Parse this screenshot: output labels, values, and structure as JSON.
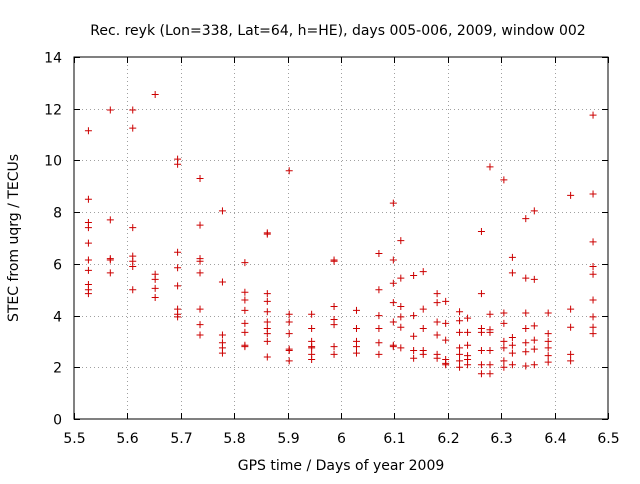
{
  "colors": {
    "point": "#cc0000",
    "axis": "#000000",
    "grid": "#a0a0a0"
  },
  "chart_data": {
    "type": "scatter",
    "title": "Rec. reyk (Lon=338, Lat=64, h=HE), days 005-006, 2009, window 002",
    "xlabel": "GPS time / Days of year 2009",
    "ylabel": "STEC from uqrg / TECUs",
    "xlim": [
      5.5,
      6.5
    ],
    "ylim": [
      0,
      14
    ],
    "grid": true,
    "marker": "plus",
    "xticks": [
      5.5,
      5.6,
      5.7,
      5.8,
      5.9,
      6.0,
      6.1,
      6.2,
      6.3,
      6.4,
      6.5
    ],
    "xtick_labels": [
      "5.5",
      "5.6",
      "5.7",
      "5.8",
      "5.9",
      "6",
      "6.1",
      "6.2",
      "6.3",
      "6.4",
      "6.5"
    ],
    "yticks": [
      0,
      2,
      4,
      6,
      8,
      10,
      12,
      14
    ],
    "ytick_labels": [
      "0",
      "2",
      "4",
      "6",
      "8",
      "10",
      "12",
      "14"
    ],
    "series": [
      {
        "name": "STEC",
        "x": [
          5.527,
          5.527,
          5.527,
          5.527,
          5.527,
          5.527,
          5.527,
          5.527,
          5.527,
          5.527,
          5.568,
          5.568,
          5.568,
          5.568,
          5.568,
          5.61,
          5.61,
          5.61,
          5.61,
          5.61,
          5.61,
          5.61,
          5.652,
          5.652,
          5.652,
          5.652,
          5.652,
          5.694,
          5.694,
          5.694,
          5.694,
          5.694,
          5.694,
          5.694,
          5.694,
          5.736,
          5.736,
          5.736,
          5.736,
          5.736,
          5.736,
          5.736,
          5.736,
          5.778,
          5.778,
          5.778,
          5.778,
          5.778,
          5.778,
          5.82,
          5.82,
          5.82,
          5.82,
          5.82,
          5.82,
          5.82,
          5.82,
          5.862,
          5.862,
          5.862,
          5.862,
          5.862,
          5.862,
          5.862,
          5.862,
          5.862,
          5.862,
          5.903,
          5.903,
          5.903,
          5.903,
          5.903,
          5.903,
          5.903,
          5.945,
          5.945,
          5.945,
          5.945,
          5.945,
          5.945,
          5.945,
          5.987,
          5.987,
          5.987,
          5.987,
          5.987,
          5.987,
          5.987,
          6.029,
          6.029,
          6.029,
          6.029,
          6.029,
          6.071,
          6.071,
          6.071,
          6.071,
          6.071,
          6.071,
          6.098,
          6.098,
          6.098,
          6.098,
          6.098,
          6.098,
          6.098,
          6.112,
          6.112,
          6.112,
          6.112,
          6.112,
          6.112,
          6.136,
          6.136,
          6.136,
          6.136,
          6.136,
          6.154,
          6.154,
          6.154,
          6.154,
          6.154,
          6.18,
          6.18,
          6.18,
          6.18,
          6.18,
          6.18,
          6.196,
          6.196,
          6.196,
          6.196,
          6.196,
          6.196,
          6.222,
          6.222,
          6.222,
          6.222,
          6.222,
          6.222,
          6.222,
          6.237,
          6.237,
          6.237,
          6.237,
          6.237,
          6.237,
          6.263,
          6.263,
          6.263,
          6.263,
          6.263,
          6.263,
          6.263,
          6.279,
          6.279,
          6.279,
          6.279,
          6.279,
          6.279,
          6.279,
          6.305,
          6.305,
          6.305,
          6.305,
          6.305,
          6.305,
          6.305,
          6.321,
          6.321,
          6.321,
          6.321,
          6.321,
          6.321,
          6.346,
          6.346,
          6.346,
          6.346,
          6.346,
          6.346,
          6.346,
          6.362,
          6.362,
          6.362,
          6.362,
          6.362,
          6.362,
          6.388,
          6.388,
          6.388,
          6.388,
          6.388,
          6.388,
          6.43,
          6.43,
          6.43,
          6.43,
          6.43,
          6.472,
          6.472,
          6.472,
          6.472,
          6.472,
          6.472,
          6.472,
          6.472,
          6.472
        ],
        "y": [
          11.15,
          8.5,
          7.6,
          7.4,
          6.8,
          6.15,
          5.75,
          5.2,
          5.0,
          4.85,
          11.95,
          7.7,
          6.2,
          6.15,
          5.65,
          11.95,
          11.25,
          7.4,
          6.3,
          6.1,
          5.9,
          5.0,
          12.55,
          5.6,
          5.4,
          5.05,
          4.7,
          10.05,
          9.85,
          6.45,
          5.85,
          5.15,
          4.25,
          4.05,
          3.95,
          9.3,
          7.5,
          6.2,
          6.1,
          5.65,
          4.25,
          3.65,
          3.25,
          8.05,
          5.3,
          3.25,
          2.95,
          2.75,
          2.55,
          6.05,
          4.9,
          4.6,
          4.2,
          3.7,
          3.35,
          2.85,
          2.8,
          7.2,
          7.15,
          4.85,
          4.55,
          4.15,
          3.75,
          3.5,
          3.3,
          3.0,
          2.4,
          9.6,
          4.05,
          3.75,
          3.3,
          2.7,
          2.65,
          2.25,
          4.05,
          3.5,
          3.0,
          2.8,
          2.75,
          2.5,
          2.3,
          6.15,
          6.1,
          4.35,
          3.85,
          3.65,
          2.8,
          2.5,
          4.2,
          3.5,
          3.0,
          2.8,
          2.55,
          6.4,
          5.0,
          4.0,
          3.5,
          2.95,
          2.5,
          8.35,
          6.15,
          5.25,
          4.5,
          3.75,
          2.85,
          2.8,
          6.9,
          5.45,
          4.35,
          3.95,
          3.55,
          2.75,
          5.55,
          4.0,
          3.2,
          2.65,
          2.35,
          5.7,
          4.25,
          3.5,
          2.65,
          2.5,
          4.85,
          4.5,
          3.75,
          3.25,
          2.5,
          2.35,
          4.55,
          3.7,
          3.05,
          2.3,
          2.15,
          2.1,
          4.15,
          3.8,
          3.35,
          2.75,
          2.5,
          2.25,
          2.0,
          3.9,
          3.35,
          2.85,
          2.45,
          2.3,
          2.1,
          7.25,
          4.85,
          3.5,
          3.35,
          2.65,
          2.1,
          1.75,
          9.75,
          4.05,
          3.45,
          3.35,
          2.65,
          2.1,
          1.75,
          9.25,
          4.1,
          3.7,
          3.0,
          2.75,
          2.25,
          2.0,
          6.25,
          5.65,
          3.15,
          2.85,
          2.55,
          2.1,
          7.75,
          5.45,
          4.1,
          3.5,
          2.95,
          2.6,
          2.05,
          8.05,
          5.4,
          3.6,
          3.05,
          2.7,
          2.1,
          4.1,
          3.3,
          3.0,
          2.75,
          2.45,
          2.2,
          8.65,
          4.25,
          3.55,
          2.5,
          2.25,
          11.75,
          8.7,
          6.85,
          5.9,
          5.6,
          4.6,
          3.95,
          3.55,
          3.3
        ]
      }
    ]
  }
}
